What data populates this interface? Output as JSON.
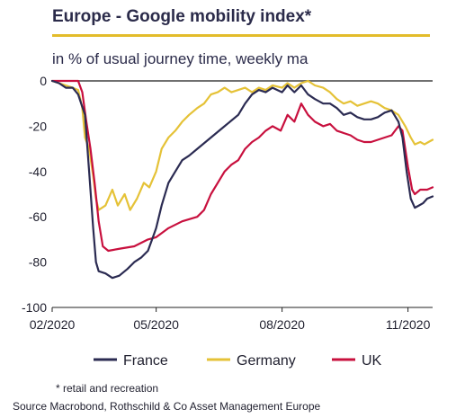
{
  "title": "Europe - Google mobility index*",
  "subtitle": "in % of usual journey time, weekly ma",
  "footnote": "* retail and recreation",
  "source": "Source Macrobond, Rothschild & Co Asset Management Europe",
  "colors": {
    "France": "#2b2b52",
    "Germany": "#e5c237",
    "UK": "#c8103e",
    "zero_line": "#707070",
    "axis": "#222222"
  },
  "chart_data": {
    "type": "line",
    "title": "Europe - Google mobility index*",
    "ylabel": "",
    "xlabel": "",
    "ylim": [
      -100,
      0
    ],
    "yticks": [
      0,
      -20,
      -40,
      -60,
      -80,
      -100
    ],
    "yticklabels": [
      "0",
      "-20",
      "-40",
      "-60",
      "-80",
      "-100"
    ],
    "xlim": [
      "2020-02-15",
      "2020-11-19"
    ],
    "xticks": [
      "2020-02-15",
      "2020-05-01",
      "2020-08-01",
      "2020-11-01"
    ],
    "xticklabels": [
      "02/2020",
      "05/2020",
      "08/2020",
      "11/2020"
    ],
    "legend_position": "bottom",
    "series": [
      {
        "name": "France",
        "color": "#2b2b52",
        "points": [
          [
            "2020-02-15",
            0
          ],
          [
            "2020-02-20",
            -1
          ],
          [
            "2020-02-25",
            -3
          ],
          [
            "2020-03-01",
            -3
          ],
          [
            "2020-03-05",
            -6
          ],
          [
            "2020-03-10",
            -15
          ],
          [
            "2020-03-13",
            -40
          ],
          [
            "2020-03-16",
            -65
          ],
          [
            "2020-03-18",
            -80
          ],
          [
            "2020-03-20",
            -84
          ],
          [
            "2020-03-25",
            -85
          ],
          [
            "2020-03-30",
            -87
          ],
          [
            "2020-04-04",
            -86
          ],
          [
            "2020-04-10",
            -83
          ],
          [
            "2020-04-15",
            -80
          ],
          [
            "2020-04-20",
            -78
          ],
          [
            "2020-04-25",
            -75
          ],
          [
            "2020-04-28",
            -70
          ],
          [
            "2020-05-01",
            -65
          ],
          [
            "2020-05-05",
            -55
          ],
          [
            "2020-05-10",
            -45
          ],
          [
            "2020-05-15",
            -40
          ],
          [
            "2020-05-20",
            -35
          ],
          [
            "2020-05-25",
            -33
          ],
          [
            "2020-05-31",
            -30
          ],
          [
            "2020-06-10",
            -25
          ],
          [
            "2020-06-20",
            -20
          ],
          [
            "2020-06-30",
            -15
          ],
          [
            "2020-07-05",
            -10
          ],
          [
            "2020-07-10",
            -6
          ],
          [
            "2020-07-15",
            -4
          ],
          [
            "2020-07-20",
            -5
          ],
          [
            "2020-07-25",
            -3
          ],
          [
            "2020-08-01",
            -5
          ],
          [
            "2020-08-05",
            -2
          ],
          [
            "2020-08-10",
            -5
          ],
          [
            "2020-08-15",
            -2
          ],
          [
            "2020-08-20",
            -6
          ],
          [
            "2020-08-25",
            -8
          ],
          [
            "2020-08-31",
            -10
          ],
          [
            "2020-09-05",
            -10
          ],
          [
            "2020-09-10",
            -12
          ],
          [
            "2020-09-15",
            -15
          ],
          [
            "2020-09-20",
            -14
          ],
          [
            "2020-09-25",
            -16
          ],
          [
            "2020-09-30",
            -17
          ],
          [
            "2020-10-05",
            -17
          ],
          [
            "2020-10-10",
            -16
          ],
          [
            "2020-10-15",
            -14
          ],
          [
            "2020-10-20",
            -13
          ],
          [
            "2020-10-25",
            -18
          ],
          [
            "2020-10-28",
            -25
          ],
          [
            "2020-10-31",
            -40
          ],
          [
            "2020-11-03",
            -52
          ],
          [
            "2020-11-06",
            -56
          ],
          [
            "2020-11-09",
            -55
          ],
          [
            "2020-11-12",
            -54
          ],
          [
            "2020-11-15",
            -52
          ],
          [
            "2020-11-19",
            -51
          ]
        ]
      },
      {
        "name": "Germany",
        "color": "#e5c237",
        "points": [
          [
            "2020-02-15",
            0
          ],
          [
            "2020-02-20",
            -1
          ],
          [
            "2020-02-25",
            -2
          ],
          [
            "2020-03-01",
            -3
          ],
          [
            "2020-03-05",
            -4
          ],
          [
            "2020-03-08",
            -12
          ],
          [
            "2020-03-10",
            -25
          ],
          [
            "2020-03-13",
            -30
          ],
          [
            "2020-03-16",
            -42
          ],
          [
            "2020-03-18",
            -52
          ],
          [
            "2020-03-20",
            -57
          ],
          [
            "2020-03-25",
            -55
          ],
          [
            "2020-03-30",
            -48
          ],
          [
            "2020-04-03",
            -55
          ],
          [
            "2020-04-08",
            -50
          ],
          [
            "2020-04-12",
            -57
          ],
          [
            "2020-04-17",
            -52
          ],
          [
            "2020-04-22",
            -45
          ],
          [
            "2020-04-26",
            -47
          ],
          [
            "2020-05-01",
            -40
          ],
          [
            "2020-05-05",
            -30
          ],
          [
            "2020-05-10",
            -25
          ],
          [
            "2020-05-15",
            -22
          ],
          [
            "2020-05-20",
            -18
          ],
          [
            "2020-05-25",
            -15
          ],
          [
            "2020-05-31",
            -12
          ],
          [
            "2020-06-05",
            -10
          ],
          [
            "2020-06-10",
            -6
          ],
          [
            "2020-06-15",
            -5
          ],
          [
            "2020-06-20",
            -3
          ],
          [
            "2020-06-25",
            -5
          ],
          [
            "2020-06-30",
            -4
          ],
          [
            "2020-07-05",
            -3
          ],
          [
            "2020-07-10",
            -5
          ],
          [
            "2020-07-15",
            -3
          ],
          [
            "2020-07-20",
            -4
          ],
          [
            "2020-07-25",
            -2
          ],
          [
            "2020-08-01",
            -3
          ],
          [
            "2020-08-05",
            -1
          ],
          [
            "2020-08-10",
            -3
          ],
          [
            "2020-08-15",
            -1
          ],
          [
            "2020-08-20",
            0
          ],
          [
            "2020-08-25",
            -2
          ],
          [
            "2020-08-31",
            -3
          ],
          [
            "2020-09-05",
            -5
          ],
          [
            "2020-09-10",
            -8
          ],
          [
            "2020-09-15",
            -10
          ],
          [
            "2020-09-20",
            -9
          ],
          [
            "2020-09-25",
            -11
          ],
          [
            "2020-09-30",
            -10
          ],
          [
            "2020-10-05",
            -9
          ],
          [
            "2020-10-10",
            -10
          ],
          [
            "2020-10-15",
            -12
          ],
          [
            "2020-10-20",
            -13
          ],
          [
            "2020-10-25",
            -15
          ],
          [
            "2020-10-30",
            -20
          ],
          [
            "2020-11-03",
            -25
          ],
          [
            "2020-11-06",
            -28
          ],
          [
            "2020-11-10",
            -27
          ],
          [
            "2020-11-13",
            -28
          ],
          [
            "2020-11-16",
            -27
          ],
          [
            "2020-11-19",
            -26
          ]
        ]
      },
      {
        "name": "UK",
        "color": "#c8103e",
        "points": [
          [
            "2020-02-15",
            0
          ],
          [
            "2020-03-05",
            0
          ],
          [
            "2020-03-08",
            -5
          ],
          [
            "2020-03-11",
            -18
          ],
          [
            "2020-03-14",
            -30
          ],
          [
            "2020-03-17",
            -45
          ],
          [
            "2020-03-20",
            -62
          ],
          [
            "2020-03-23",
            -73
          ],
          [
            "2020-03-27",
            -75
          ],
          [
            "2020-04-05",
            -74
          ],
          [
            "2020-04-15",
            -73
          ],
          [
            "2020-04-25",
            -70
          ],
          [
            "2020-05-01",
            -69
          ],
          [
            "2020-05-10",
            -65
          ],
          [
            "2020-05-20",
            -62
          ],
          [
            "2020-05-31",
            -60
          ],
          [
            "2020-06-05",
            -57
          ],
          [
            "2020-06-10",
            -50
          ],
          [
            "2020-06-15",
            -45
          ],
          [
            "2020-06-20",
            -40
          ],
          [
            "2020-06-25",
            -37
          ],
          [
            "2020-06-30",
            -35
          ],
          [
            "2020-07-05",
            -30
          ],
          [
            "2020-07-10",
            -27
          ],
          [
            "2020-07-15",
            -25
          ],
          [
            "2020-07-20",
            -22
          ],
          [
            "2020-07-25",
            -20
          ],
          [
            "2020-07-31",
            -22
          ],
          [
            "2020-08-05",
            -15
          ],
          [
            "2020-08-10",
            -18
          ],
          [
            "2020-08-15",
            -10
          ],
          [
            "2020-08-20",
            -15
          ],
          [
            "2020-08-25",
            -18
          ],
          [
            "2020-08-31",
            -20
          ],
          [
            "2020-09-05",
            -19
          ],
          [
            "2020-09-10",
            -22
          ],
          [
            "2020-09-15",
            -23
          ],
          [
            "2020-09-20",
            -24
          ],
          [
            "2020-09-25",
            -26
          ],
          [
            "2020-09-30",
            -27
          ],
          [
            "2020-10-05",
            -27
          ],
          [
            "2020-10-10",
            -26
          ],
          [
            "2020-10-15",
            -25
          ],
          [
            "2020-10-20",
            -24
          ],
          [
            "2020-10-25",
            -20
          ],
          [
            "2020-10-28",
            -22
          ],
          [
            "2020-11-01",
            -38
          ],
          [
            "2020-11-04",
            -48
          ],
          [
            "2020-11-06",
            -50
          ],
          [
            "2020-11-10",
            -48
          ],
          [
            "2020-11-15",
            -48
          ],
          [
            "2020-11-19",
            -47
          ]
        ]
      }
    ]
  }
}
